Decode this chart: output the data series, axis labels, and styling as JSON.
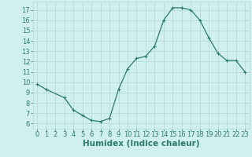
{
  "x": [
    0,
    1,
    3,
    4,
    5,
    6,
    7,
    8,
    9,
    10,
    11,
    12,
    13,
    14,
    15,
    16,
    17,
    18,
    19,
    20,
    21,
    22,
    23
  ],
  "y": [
    9.8,
    9.3,
    8.5,
    7.3,
    6.8,
    6.3,
    6.2,
    6.5,
    9.3,
    11.3,
    12.3,
    12.5,
    13.5,
    16.0,
    17.2,
    17.2,
    17.0,
    16.0,
    14.3,
    12.8,
    12.1,
    12.1,
    11.0
  ],
  "line_color": "#2d7a6e",
  "marker": "+",
  "marker_size": 4,
  "bg_color": "#cff0ee",
  "grid_color": "#b8dbd8",
  "tick_color": "#2d7a6e",
  "xlabel": "Humidex (Indice chaleur)",
  "xlabel_fontsize": 7.5,
  "xlabel_color": "#2d7a6e",
  "tick_fontsize": 6,
  "xlim": [
    -0.5,
    23.5
  ],
  "ylim": [
    5.5,
    17.8
  ],
  "yticks": [
    6,
    7,
    8,
    9,
    10,
    11,
    12,
    13,
    14,
    15,
    16,
    17
  ],
  "xticks": [
    0,
    1,
    2,
    3,
    4,
    5,
    6,
    7,
    8,
    9,
    10,
    11,
    12,
    13,
    14,
    15,
    16,
    17,
    18,
    19,
    20,
    21,
    22,
    23
  ]
}
